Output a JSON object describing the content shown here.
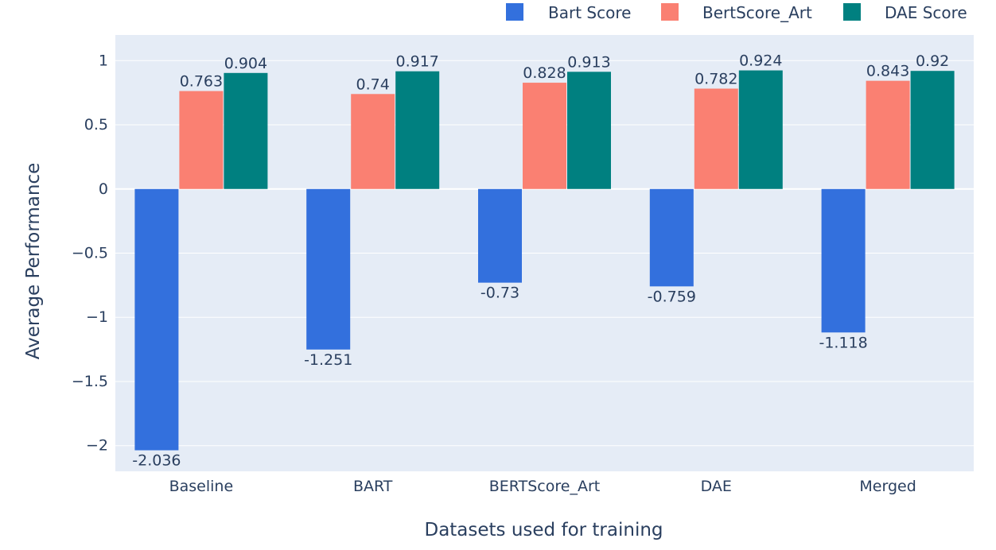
{
  "chart_data": {
    "type": "bar",
    "categories": [
      "Baseline",
      "BART",
      "BERTScore_Art",
      "DAE",
      "Merged"
    ],
    "series": [
      {
        "name": "Bart Score",
        "values": [
          -2.036,
          -1.251,
          -0.73,
          -0.759,
          -1.118
        ],
        "color": "#3370dd"
      },
      {
        "name": "BertScore_Art",
        "values": [
          0.763,
          0.74,
          0.828,
          0.782,
          0.843
        ],
        "color": "#fa8072"
      },
      {
        "name": "DAE Score",
        "values": [
          0.904,
          0.917,
          0.913,
          0.924,
          0.92
        ],
        "color": "#008080"
      }
    ],
    "data_labels": [
      [
        "-2.036",
        "-1.251",
        "-0.73",
        "-0.759",
        "-1.118"
      ],
      [
        "0.763",
        "0.74",
        "0.828",
        "0.782",
        "0.843"
      ],
      [
        "0.904",
        "0.917",
        "0.913",
        "0.924",
        "0.92"
      ]
    ],
    "xlabel": "Datasets used for training",
    "ylabel": "Average Performance",
    "ylim": [
      -2.2,
      1.2
    ],
    "yticks": [
      1,
      0.5,
      0,
      -0.5,
      -1,
      -1.5,
      -2
    ],
    "ytick_labels": [
      "1",
      "0.5",
      "0",
      "−0.5",
      "−1",
      "−1.5",
      "−2"
    ],
    "grid": true,
    "legend_position": "top-right",
    "plot_background": "#e5ecf6",
    "grid_color": "#ffffff",
    "text_color": "#2a3f5f"
  }
}
